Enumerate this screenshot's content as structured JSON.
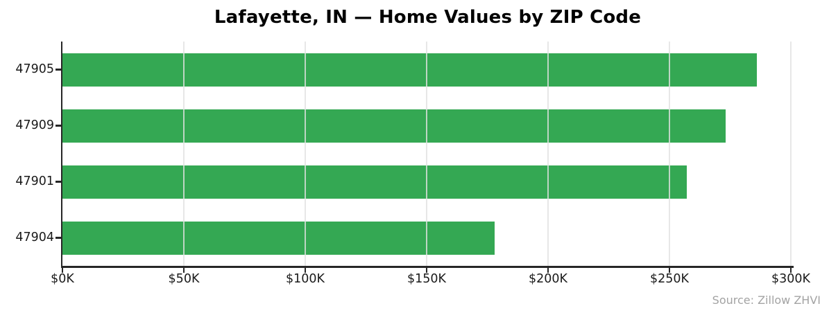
{
  "title": "Lafayette, IN — Home Values by ZIP Code",
  "source_note": "Source: Zillow ZHVI",
  "colors": {
    "bar": "#34a853",
    "grid": "#e1e1e1",
    "spine": "#262626",
    "tick_label": "#1a1a1a",
    "source_text": "#a3a3a3",
    "background": "#ffffff"
  },
  "chart_data": {
    "type": "bar",
    "orientation": "horizontal",
    "title": "Lafayette, IN — Home Values by ZIP Code",
    "categories": [
      "47905",
      "47909",
      "47901",
      "47904"
    ],
    "values": [
      286,
      273,
      257,
      178
    ],
    "values_unit": "USD thousands",
    "xlabel": "",
    "ylabel": "",
    "xlim": [
      0,
      300
    ],
    "xticks": [
      {
        "value": 0,
        "label": "$0K"
      },
      {
        "value": 50,
        "label": "$50K"
      },
      {
        "value": 100,
        "label": "$100K"
      },
      {
        "value": 150,
        "label": "$150K"
      },
      {
        "value": 200,
        "label": "$200K"
      },
      {
        "value": 250,
        "label": "$250K"
      },
      {
        "value": 300,
        "label": "$300K"
      }
    ],
    "grid": "vertical gridlines at x ticks, drawn over bars",
    "legend": "none",
    "source": "Source: Zillow ZHVI"
  }
}
